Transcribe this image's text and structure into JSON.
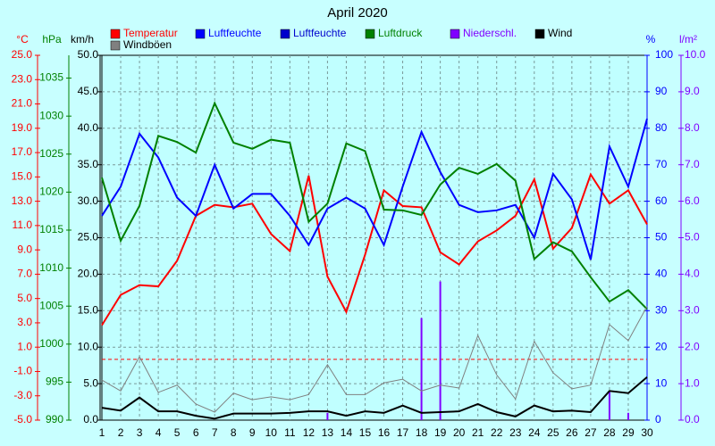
{
  "chart_data": {
    "type": "line",
    "title": "April 2020",
    "categories": [
      "1",
      "2",
      "3",
      "4",
      "5",
      "6",
      "7",
      "8",
      "9",
      "10",
      "11",
      "12",
      "13",
      "14",
      "15",
      "16",
      "17",
      "18",
      "19",
      "20",
      "21",
      "22",
      "23",
      "24",
      "25",
      "26",
      "27",
      "28",
      "29",
      "30"
    ],
    "axes": [
      {
        "label": "°C",
        "color": "#ff0000",
        "lim": [
          -5,
          25
        ],
        "ticks": [
          {
            "value": -5,
            "label": "-5.0"
          },
          {
            "value": -3,
            "label": "-3.0"
          },
          {
            "value": -1,
            "label": "-1.0"
          },
          {
            "value": 1,
            "label": "1.0"
          },
          {
            "value": 3,
            "label": "3.0"
          },
          {
            "value": 5,
            "label": "5.0"
          },
          {
            "value": 7,
            "label": "7.0"
          },
          {
            "value": 9,
            "label": "9.0"
          },
          {
            "value": 11,
            "label": "11.0"
          },
          {
            "value": 13,
            "label": "13.0"
          },
          {
            "value": 15,
            "label": "15.0"
          },
          {
            "value": 17,
            "label": "17.0"
          },
          {
            "value": 19,
            "label": "19.0"
          },
          {
            "value": 21,
            "label": "21.0"
          },
          {
            "value": 23,
            "label": "23.0"
          },
          {
            "value": 25,
            "label": "25.0"
          }
        ]
      },
      {
        "label": "hPa",
        "color": "#008000",
        "lim": [
          990,
          1038
        ],
        "ticks": [
          990,
          995,
          1000,
          1005,
          1010,
          1015,
          1020,
          1025,
          1030,
          1035
        ]
      },
      {
        "label": "km/h",
        "color": "#000000",
        "lim": [
          0,
          50
        ],
        "ticks": [
          {
            "value": 0,
            "label": "0.0"
          },
          {
            "value": 5,
            "label": "5.0"
          },
          {
            "value": 10,
            "label": "10.0"
          },
          {
            "value": 15,
            "label": "15.0"
          },
          {
            "value": 20,
            "label": "20.0"
          },
          {
            "value": 25,
            "label": "25.0"
          },
          {
            "value": 30,
            "label": "30.0"
          },
          {
            "value": 35,
            "label": "35.0"
          },
          {
            "value": 40,
            "label": "40.0"
          },
          {
            "value": 45,
            "label": "45.0"
          },
          {
            "value": 50,
            "label": "50.0"
          }
        ]
      },
      {
        "label": "%",
        "color": "#0000ff",
        "lim": [
          0,
          100
        ],
        "ticks": [
          0,
          10,
          20,
          30,
          40,
          50,
          60,
          70,
          80,
          90,
          100
        ]
      },
      {
        "label": "l/m²",
        "color": "#8000ff",
        "lim": [
          0,
          10
        ],
        "ticks": [
          {
            "value": 0,
            "label": "0.0"
          },
          {
            "value": 1,
            "label": "1.0"
          },
          {
            "value": 2,
            "label": "2.0"
          },
          {
            "value": 3,
            "label": "3.0"
          },
          {
            "value": 4,
            "label": "4.0"
          },
          {
            "value": 5,
            "label": "5.0"
          },
          {
            "value": 6,
            "label": "6.0"
          },
          {
            "value": 7,
            "label": "7.0"
          },
          {
            "value": 8,
            "label": "8.0"
          },
          {
            "value": 9,
            "label": "9.0"
          },
          {
            "value": 10,
            "label": "10.0"
          }
        ]
      }
    ],
    "grid": true,
    "reference_line": {
      "axis": 0,
      "value": 0,
      "color": "#ff0000"
    },
    "series": [
      {
        "name": "Temperatur",
        "color": "#ff0000",
        "axis": 0,
        "kind": "line",
        "values": [
          2.8,
          5.3,
          6.1,
          6.0,
          8.1,
          11.8,
          12.7,
          12.5,
          12.8,
          10.3,
          8.9,
          15.1,
          6.8,
          3.9,
          8.6,
          13.9,
          12.6,
          12.5,
          8.8,
          7.8,
          9.7,
          10.6,
          11.8,
          14.8,
          9.1,
          10.8,
          15.2,
          12.8,
          13.9,
          11.1
        ]
      },
      {
        "name": "Luftfeuchte",
        "color": "#0000ff",
        "axis": 3,
        "kind": "line",
        "values": [
          56,
          64,
          78.5,
          72,
          61,
          56,
          70,
          58,
          62,
          62,
          56,
          48,
          58,
          61,
          58,
          48,
          64,
          79,
          68,
          59,
          57,
          57.5,
          59,
          50,
          67.5,
          60.5,
          44,
          75,
          64,
          82.6
        ]
      },
      {
        "name": "Luftfeuchte",
        "color": "#0000cc",
        "axis": 3,
        "kind": "line",
        "values": [
          null,
          null,
          null,
          null,
          null,
          null,
          null,
          null,
          null,
          null,
          null,
          null,
          null,
          null,
          null,
          null,
          null,
          null,
          null,
          null,
          null,
          null,
          null,
          null,
          null,
          null,
          null,
          null,
          null,
          null
        ]
      },
      {
        "name": "Luftdruck",
        "color": "#008000",
        "axis": 1,
        "kind": "line",
        "values": [
          1021.9,
          1013.6,
          1018.2,
          1027.4,
          1026.6,
          1025.2,
          1031.7,
          1026.5,
          1025.7,
          1026.9,
          1026.5,
          1016.1,
          1018.5,
          1026.4,
          1025.4,
          1017.7,
          1017.6,
          1017,
          1021,
          1023.2,
          1022.4,
          1023.7,
          1021.5,
          1011.2,
          1013.4,
          1012.2,
          1008.8,
          1005.6,
          1007.1,
          1004.6
        ]
      },
      {
        "name": "Niederschl.",
        "color": "#8000ff",
        "axis": 4,
        "kind": "bar",
        "values": [
          0,
          0,
          0,
          0,
          0,
          0,
          0,
          0,
          0,
          0,
          0,
          0,
          0.2,
          0,
          0,
          0,
          0,
          2.8,
          3.8,
          0,
          0,
          0,
          0,
          0,
          0,
          0,
          0,
          0.8,
          0.2,
          0
        ]
      },
      {
        "name": "Wind",
        "color": "#000000",
        "axis": 2,
        "kind": "line",
        "values": [
          1.7,
          1.3,
          3.1,
          1.2,
          1.2,
          0.6,
          0.2,
          0.9,
          0.9,
          0.9,
          1.0,
          1.2,
          1.2,
          0.6,
          1.2,
          1.0,
          2.0,
          1.0,
          1.1,
          1.2,
          2.2,
          1.1,
          0.5,
          2.0,
          1.2,
          1.3,
          1.1,
          4.0,
          3.7,
          5.9
        ]
      },
      {
        "name": "Windböen",
        "color": "#808080",
        "axis": 2,
        "kind": "thin",
        "values": [
          5.5,
          4.0,
          8.7,
          3.8,
          4.8,
          2.2,
          1.1,
          3.7,
          2.8,
          3.2,
          2.8,
          3.5,
          7.6,
          3.5,
          3.5,
          5.1,
          5.6,
          4.0,
          4.8,
          4.4,
          11.6,
          6.2,
          2.9,
          10.8,
          6.5,
          4.3,
          4.8,
          13.1,
          10.9,
          15.6
        ]
      }
    ]
  }
}
